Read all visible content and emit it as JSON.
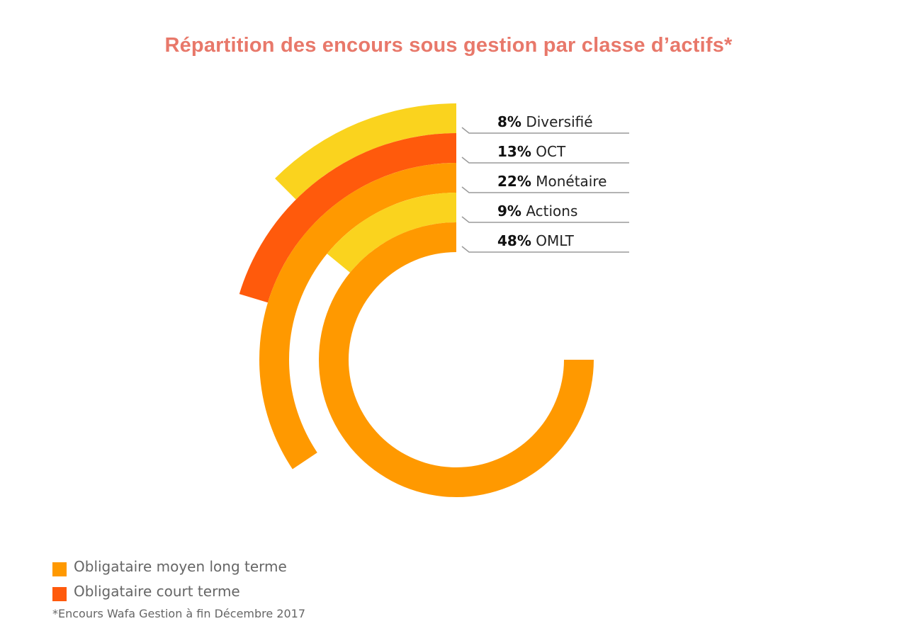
{
  "chart_data": {
    "type": "radial-bar",
    "title": "Répartition des encours sous gestion par classe d’actifs*",
    "title_color": "#E8786A",
    "series": [
      {
        "pct_label": "8%",
        "name": "Diversifié",
        "value": 8,
        "color": "#FAD31E"
      },
      {
        "pct_label": "13%",
        "name": "OCT",
        "value": 13,
        "color": "#FF5A0C"
      },
      {
        "pct_label": "22%",
        "name": "Monétaire",
        "value": 22,
        "color": "#FF9900"
      },
      {
        "pct_label": "9%",
        "name": "Actions",
        "value": 9,
        "color": "#FAD31E"
      },
      {
        "pct_label": "48%",
        "name": "OMLT",
        "value": 48,
        "color": "#FF9900"
      }
    ],
    "legend": [
      {
        "label": "Obligataire moyen long terme",
        "color": "#FF9900"
      },
      {
        "label": "Obligataire court terme",
        "color": "#FF5A0C"
      }
    ],
    "footnote": "*Encours Wafa Gestion à fin Décembre 2017"
  }
}
